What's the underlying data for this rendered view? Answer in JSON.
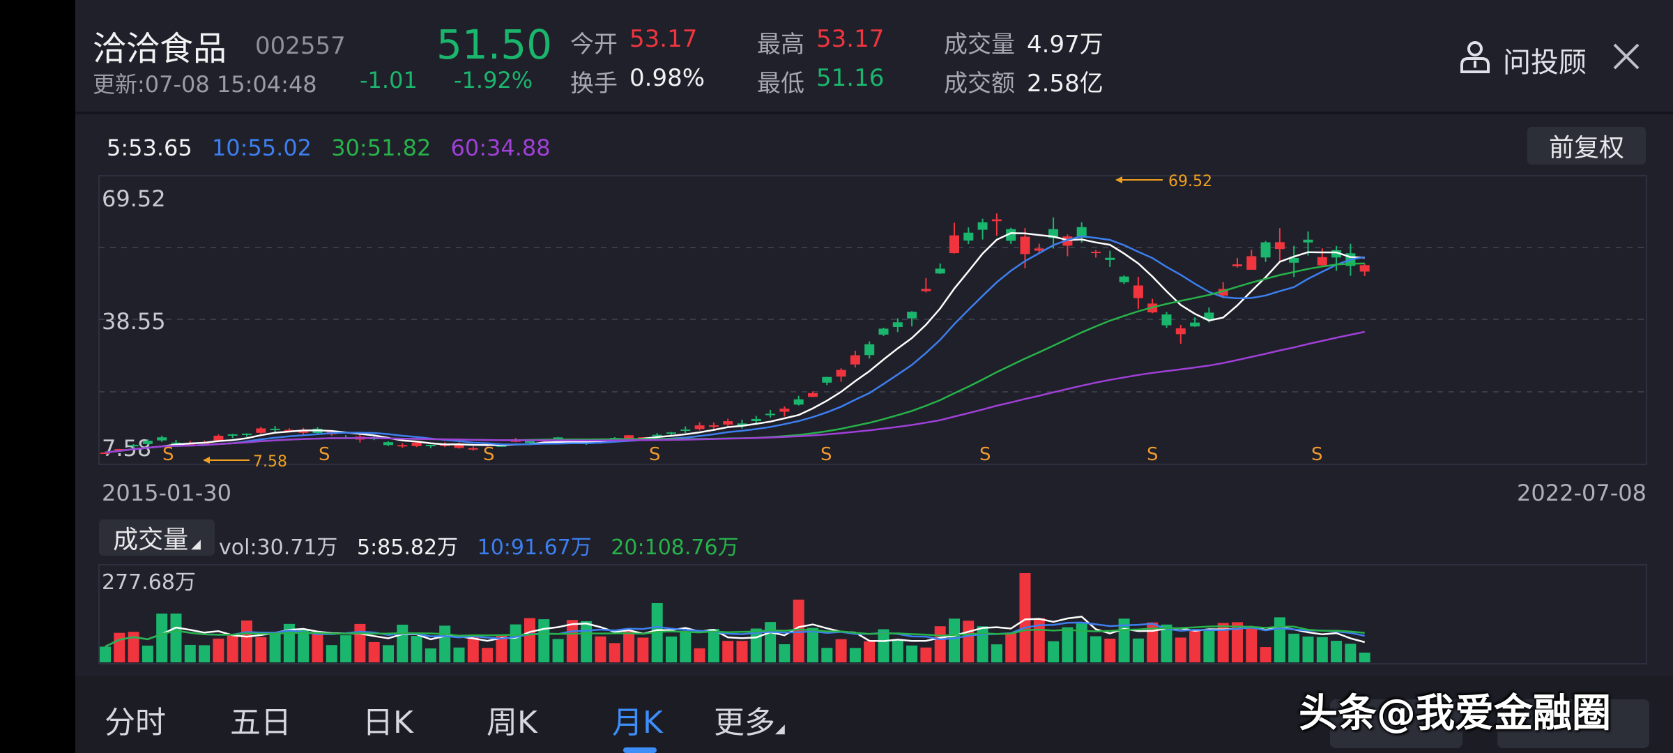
{
  "header": {
    "name": "洽洽食品",
    "code": "002557",
    "update": "更新:07-08 15:04:48",
    "price": "51.50",
    "change": "-1.01",
    "change_pct": "-1.92%",
    "open_label": "今开",
    "open": "53.17",
    "turnover_label": "换手",
    "turnover": "0.98%",
    "high_label": "最高",
    "high": "53.17",
    "low_label": "最低",
    "low": "51.16",
    "volume_label": "成交量",
    "volume": "4.97万",
    "amount_label": "成交额",
    "amount": "2.58亿",
    "advisor": "问投顾"
  },
  "ma": {
    "ma5": "5:53.65",
    "ma10": "10:55.02",
    "ma30": "30:51.82",
    "ma60": "60:34.88",
    "adjust": "前复权"
  },
  "kline": {
    "price_top": "69.52",
    "price_mid": "38.55",
    "price_bottom": "7.58",
    "max_marker": "69.52",
    "min_marker": "7.58",
    "s_label": "S",
    "date_start": "2015-01-30",
    "date_end": "2022-07-08"
  },
  "volume": {
    "button": "成交量",
    "vol": "vol:30.71万",
    "ma5": "5:85.82万",
    "ma10": "10:91.67万",
    "ma20": "20:108.76万",
    "max": "277.68万"
  },
  "tabs": [
    "分时",
    "五日",
    "日K",
    "周K",
    "月K",
    "更多"
  ],
  "watermark": "头条@我爱金融圈",
  "colors": {
    "up": "#f0353f",
    "down": "#1bb66e",
    "ma5": "#ffffff",
    "ma10": "#3d7ff0",
    "ma30": "#27b34a",
    "ma60": "#a040d8",
    "accent": "#3d8ef8"
  }
}
